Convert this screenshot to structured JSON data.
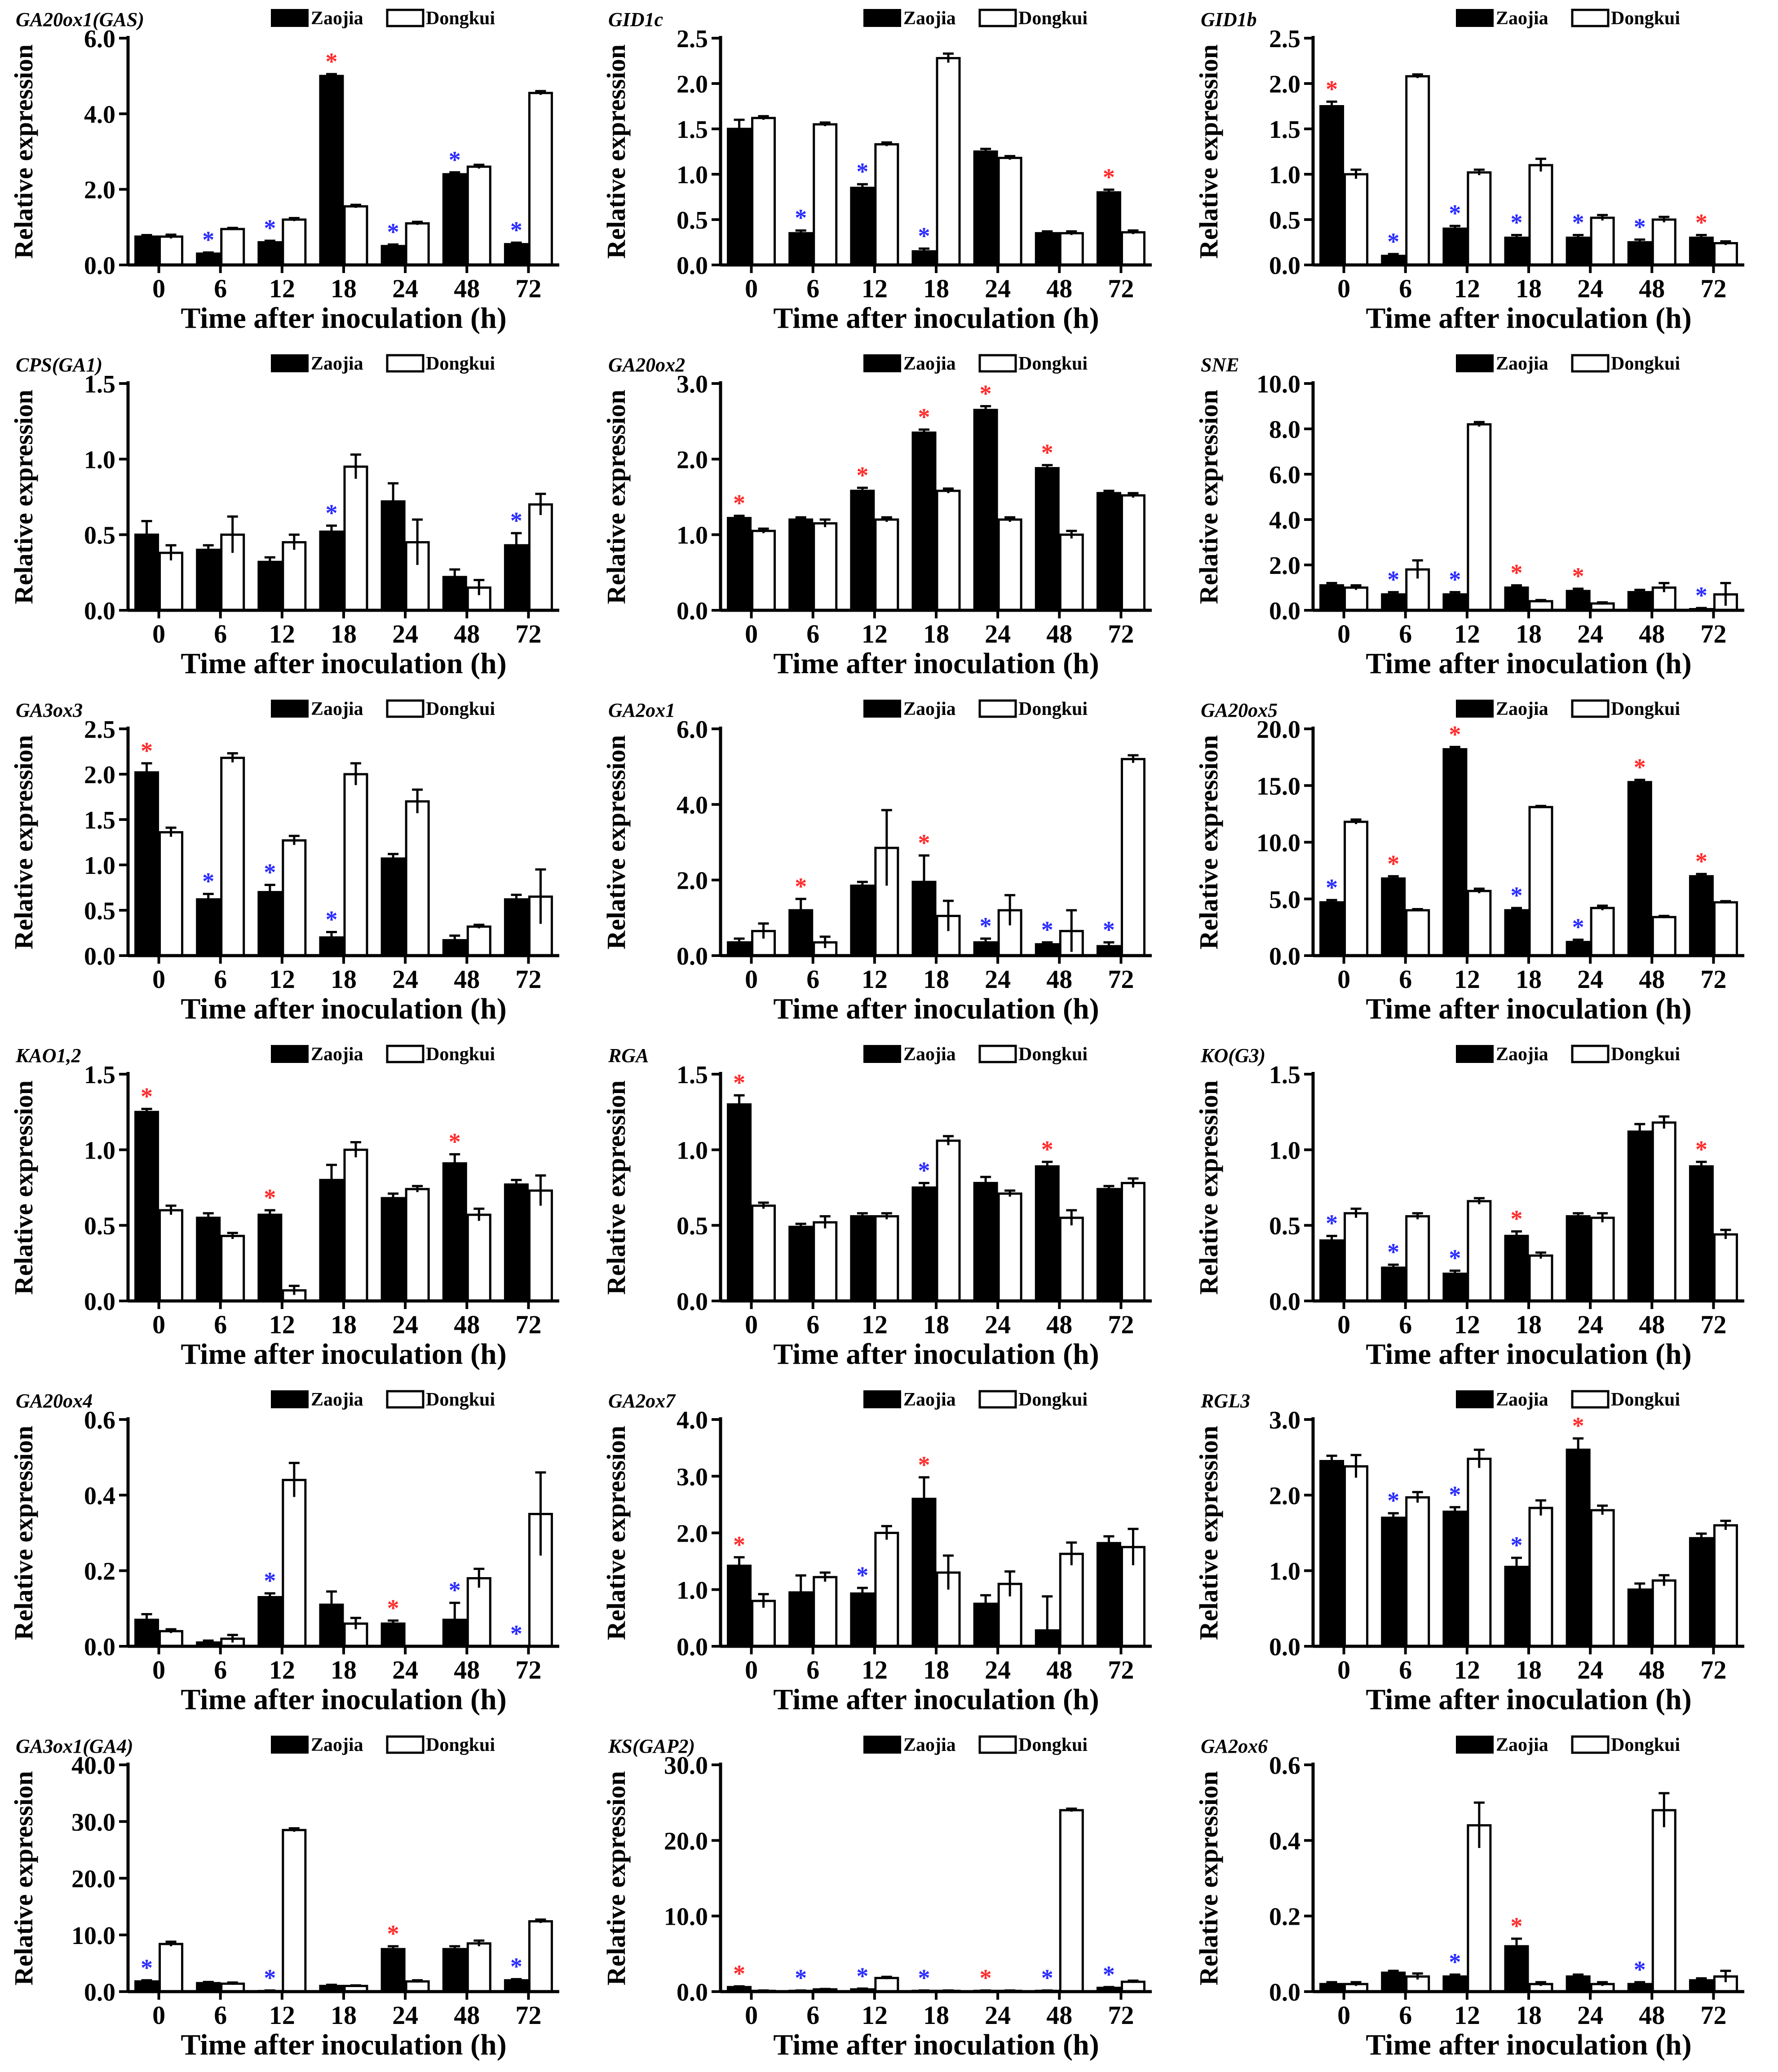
{
  "figure": {
    "categories": [
      "0",
      "6",
      "12",
      "18",
      "24",
      "48",
      "72"
    ],
    "xlabel": "Time after inoculation (h)",
    "ylabel": "Relative expression",
    "legend": [
      "Zaojia",
      "Dongkui"
    ],
    "colors": {
      "zaojia": "#000000",
      "dongkui": "#ffffff",
      "star_up": "#ff2a2a",
      "star_down": "#2a2aff"
    }
  },
  "chart_data": [
    {
      "type": "bar",
      "title": "GA20ox1(GAS)",
      "ylim": [
        0,
        6
      ],
      "yticks": [
        "0.0",
        "2.0",
        "4.0",
        "6.0"
      ],
      "series": [
        {
          "name": "Zaojia",
          "values": [
            0.75,
            0.3,
            0.6,
            5.0,
            0.5,
            2.4,
            0.55
          ],
          "errors": [
            0.04,
            0.03,
            0.04,
            0.05,
            0.04,
            0.05,
            0.04
          ]
        },
        {
          "name": "Dongkui",
          "values": [
            0.75,
            0.95,
            1.2,
            1.55,
            1.1,
            2.6,
            4.55
          ],
          "errors": [
            0.05,
            0.03,
            0.04,
            0.04,
            0.04,
            0.05,
            0.05
          ]
        }
      ],
      "stars": [
        "",
        "b",
        "b",
        "r",
        "b",
        "b",
        "b"
      ]
    },
    {
      "type": "bar",
      "title": "GID1c",
      "ylim": [
        0,
        2.5
      ],
      "yticks": [
        "0.0",
        "0.5",
        "1.0",
        "1.5",
        "2.0",
        "2.5"
      ],
      "series": [
        {
          "name": "Zaojia",
          "values": [
            1.5,
            0.35,
            0.85,
            0.15,
            1.25,
            0.35,
            0.8
          ],
          "errors": [
            0.1,
            0.03,
            0.04,
            0.03,
            0.03,
            0.02,
            0.03
          ]
        },
        {
          "name": "Dongkui",
          "values": [
            1.62,
            1.55,
            1.33,
            2.28,
            1.18,
            0.35,
            0.36
          ],
          "errors": [
            0.02,
            0.02,
            0.02,
            0.05,
            0.02,
            0.02,
            0.02
          ]
        }
      ],
      "stars": [
        "",
        "b",
        "b",
        "b",
        "",
        "",
        "r"
      ]
    },
    {
      "type": "bar",
      "title": "GID1b",
      "ylim": [
        0,
        2.5
      ],
      "yticks": [
        "0.0",
        "0.5",
        "1.0",
        "1.5",
        "2.0",
        "2.5"
      ],
      "series": [
        {
          "name": "Zaojia",
          "values": [
            1.75,
            0.1,
            0.4,
            0.3,
            0.3,
            0.25,
            0.3
          ],
          "errors": [
            0.05,
            0.02,
            0.03,
            0.03,
            0.03,
            0.03,
            0.03
          ]
        },
        {
          "name": "Dongkui",
          "values": [
            1.0,
            2.08,
            1.02,
            1.1,
            0.52,
            0.5,
            0.24
          ],
          "errors": [
            0.05,
            0.02,
            0.03,
            0.07,
            0.03,
            0.03,
            0.02
          ]
        }
      ],
      "stars": [
        "r",
        "b",
        "b",
        "b",
        "b",
        "b",
        "r"
      ]
    },
    {
      "type": "bar",
      "title": "CPS(GA1)",
      "ylim": [
        0,
        1.5
      ],
      "yticks": [
        "0.0",
        "0.5",
        "1.0",
        "1.5"
      ],
      "series": [
        {
          "name": "Zaojia",
          "values": [
            0.5,
            0.4,
            0.32,
            0.52,
            0.72,
            0.22,
            0.43
          ],
          "errors": [
            0.09,
            0.03,
            0.03,
            0.04,
            0.12,
            0.05,
            0.08
          ]
        },
        {
          "name": "Dongkui",
          "values": [
            0.38,
            0.5,
            0.45,
            0.95,
            0.45,
            0.15,
            0.7
          ],
          "errors": [
            0.05,
            0.12,
            0.05,
            0.08,
            0.15,
            0.05,
            0.07
          ]
        }
      ],
      "stars": [
        "",
        "",
        "",
        "b",
        "",
        "",
        "b"
      ]
    },
    {
      "type": "bar",
      "title": "GA20ox2",
      "ylim": [
        0,
        3
      ],
      "yticks": [
        "0.0",
        "1.0",
        "2.0",
        "3.0"
      ],
      "series": [
        {
          "name": "Zaojia",
          "values": [
            1.22,
            1.2,
            1.58,
            2.35,
            2.65,
            1.88,
            1.55
          ],
          "errors": [
            0.03,
            0.03,
            0.04,
            0.04,
            0.05,
            0.04,
            0.03
          ]
        },
        {
          "name": "Dongkui",
          "values": [
            1.05,
            1.15,
            1.2,
            1.58,
            1.2,
            1.0,
            1.52
          ],
          "errors": [
            0.03,
            0.05,
            0.03,
            0.03,
            0.03,
            0.05,
            0.03
          ]
        }
      ],
      "stars": [
        "r",
        "",
        "r",
        "r",
        "r",
        "r",
        ""
      ]
    },
    {
      "type": "bar",
      "title": "SNE",
      "ylim": [
        0,
        10
      ],
      "yticks": [
        "0.0",
        "2.0",
        "4.0",
        "6.0",
        "8.0",
        "10.0"
      ],
      "series": [
        {
          "name": "Zaojia",
          "values": [
            1.1,
            0.7,
            0.7,
            1.0,
            0.85,
            0.8,
            0.05
          ],
          "errors": [
            0.1,
            0.1,
            0.1,
            0.1,
            0.1,
            0.1,
            0.05
          ]
        },
        {
          "name": "Dongkui",
          "values": [
            1.0,
            1.8,
            8.2,
            0.4,
            0.3,
            1.0,
            0.7
          ],
          "errors": [
            0.1,
            0.4,
            0.1,
            0.05,
            0.05,
            0.2,
            0.5
          ]
        }
      ],
      "stars": [
        "",
        "b",
        "b",
        "r",
        "r",
        "",
        "b"
      ]
    },
    {
      "type": "bar",
      "title": "GA3ox3",
      "ylim": [
        0,
        2.5
      ],
      "yticks": [
        "0.0",
        "0.5",
        "1.0",
        "1.5",
        "2.0",
        "2.5"
      ],
      "series": [
        {
          "name": "Zaojia",
          "values": [
            2.02,
            0.62,
            0.7,
            0.2,
            1.07,
            0.17,
            0.62
          ],
          "errors": [
            0.1,
            0.06,
            0.08,
            0.06,
            0.05,
            0.05,
            0.05
          ]
        },
        {
          "name": "Dongkui",
          "values": [
            1.36,
            2.18,
            1.27,
            2.0,
            1.7,
            0.32,
            0.65
          ],
          "errors": [
            0.05,
            0.05,
            0.05,
            0.12,
            0.13,
            0.02,
            0.3
          ]
        }
      ],
      "stars": [
        "r",
        "b",
        "b",
        "b",
        "",
        "",
        ""
      ]
    },
    {
      "type": "bar",
      "title": "GA2ox1",
      "ylim": [
        0,
        6
      ],
      "yticks": [
        "0.0",
        "2.0",
        "4.0",
        "6.0"
      ],
      "series": [
        {
          "name": "Zaojia",
          "values": [
            0.35,
            1.2,
            1.85,
            1.95,
            0.35,
            0.3,
            0.25
          ],
          "errors": [
            0.1,
            0.3,
            0.1,
            0.7,
            0.1,
            0.05,
            0.1
          ]
        },
        {
          "name": "Dongkui",
          "values": [
            0.65,
            0.35,
            2.85,
            1.05,
            1.2,
            0.65,
            5.2
          ],
          "errors": [
            0.2,
            0.15,
            1.0,
            0.4,
            0.4,
            0.55,
            0.1
          ]
        }
      ],
      "stars": [
        "",
        "r",
        "",
        "r",
        "b",
        "b",
        "b"
      ]
    },
    {
      "type": "bar",
      "title": "GA20ox5",
      "ylim": [
        0,
        20
      ],
      "yticks": [
        "0.0",
        "5.0",
        "10.0",
        "15.0",
        "20.0"
      ],
      "series": [
        {
          "name": "Zaojia",
          "values": [
            4.7,
            6.8,
            18.2,
            4.0,
            1.2,
            15.3,
            7.0
          ],
          "errors": [
            0.2,
            0.2,
            0.2,
            0.2,
            0.2,
            0.2,
            0.2
          ]
        },
        {
          "name": "Dongkui",
          "values": [
            11.8,
            4.0,
            5.7,
            13.1,
            4.2,
            3.4,
            4.7
          ],
          "errors": [
            0.2,
            0.1,
            0.2,
            0.1,
            0.2,
            0.1,
            0.1
          ]
        }
      ],
      "stars": [
        "b",
        "r",
        "r",
        "b",
        "b",
        "r",
        "r"
      ]
    },
    {
      "type": "bar",
      "title": "KAO1,2",
      "ylim": [
        0,
        1.5
      ],
      "yticks": [
        "0.0",
        "0.5",
        "1.0",
        "1.5"
      ],
      "series": [
        {
          "name": "Zaojia",
          "values": [
            1.25,
            0.55,
            0.57,
            0.8,
            0.68,
            0.91,
            0.77
          ],
          "errors": [
            0.02,
            0.03,
            0.03,
            0.1,
            0.03,
            0.06,
            0.03
          ]
        },
        {
          "name": "Dongkui",
          "values": [
            0.6,
            0.43,
            0.07,
            1.0,
            0.74,
            0.57,
            0.73
          ],
          "errors": [
            0.03,
            0.02,
            0.03,
            0.05,
            0.02,
            0.04,
            0.1
          ]
        }
      ],
      "stars": [
        "r",
        "",
        "r",
        "",
        "",
        "r",
        ""
      ]
    },
    {
      "type": "bar",
      "title": "RGA",
      "ylim": [
        0,
        1.5
      ],
      "yticks": [
        "0.0",
        "0.5",
        "1.0",
        "1.5"
      ],
      "series": [
        {
          "name": "Zaojia",
          "values": [
            1.3,
            0.49,
            0.56,
            0.75,
            0.78,
            0.89,
            0.74
          ],
          "errors": [
            0.06,
            0.02,
            0.02,
            0.03,
            0.04,
            0.03,
            0.02
          ]
        },
        {
          "name": "Dongkui",
          "values": [
            0.63,
            0.52,
            0.56,
            1.06,
            0.71,
            0.55,
            0.78
          ],
          "errors": [
            0.02,
            0.04,
            0.02,
            0.03,
            0.02,
            0.05,
            0.03
          ]
        }
      ],
      "stars": [
        "r",
        "",
        "",
        "b",
        "",
        "r",
        ""
      ]
    },
    {
      "type": "bar",
      "title": "KO(G3)",
      "ylim": [
        0,
        1.5
      ],
      "yticks": [
        "0.0",
        "0.5",
        "1.0",
        "1.5"
      ],
      "series": [
        {
          "name": "Zaojia",
          "values": [
            0.4,
            0.22,
            0.18,
            0.43,
            0.56,
            1.12,
            0.89
          ],
          "errors": [
            0.03,
            0.02,
            0.02,
            0.03,
            0.02,
            0.05,
            0.03
          ]
        },
        {
          "name": "Dongkui",
          "values": [
            0.58,
            0.56,
            0.66,
            0.3,
            0.55,
            1.18,
            0.44
          ],
          "errors": [
            0.03,
            0.02,
            0.02,
            0.02,
            0.03,
            0.04,
            0.03
          ]
        }
      ],
      "stars": [
        "b",
        "b",
        "b",
        "r",
        "",
        "",
        "r"
      ]
    },
    {
      "type": "bar",
      "title": "GA20ox4",
      "ylim": [
        0,
        0.6
      ],
      "yticks": [
        "0.0",
        "0.2",
        "0.4",
        "0.6"
      ],
      "series": [
        {
          "name": "Zaojia",
          "values": [
            0.07,
            0.01,
            0.13,
            0.11,
            0.06,
            0.07,
            0.0
          ],
          "errors": [
            0.015,
            0.005,
            0.01,
            0.035,
            0.008,
            0.045,
            0.0
          ]
        },
        {
          "name": "Dongkui",
          "values": [
            0.04,
            0.02,
            0.44,
            0.06,
            0.0,
            0.18,
            0.35
          ],
          "errors": [
            0.005,
            0.01,
            0.045,
            0.015,
            0.0,
            0.025,
            0.11
          ]
        }
      ],
      "stars": [
        "",
        "",
        "b",
        "",
        "r",
        "b",
        "b"
      ]
    },
    {
      "type": "bar",
      "title": "GA2ox7",
      "ylim": [
        0,
        4
      ],
      "yticks": [
        "0.0",
        "1.0",
        "2.0",
        "3.0",
        "4.0"
      ],
      "series": [
        {
          "name": "Zaojia",
          "values": [
            1.42,
            0.95,
            0.93,
            2.6,
            0.75,
            0.28,
            1.82
          ],
          "errors": [
            0.15,
            0.3,
            0.1,
            0.38,
            0.15,
            0.6,
            0.12
          ]
        },
        {
          "name": "Dongkui",
          "values": [
            0.8,
            1.22,
            2.0,
            1.3,
            1.1,
            1.63,
            1.75
          ],
          "errors": [
            0.12,
            0.08,
            0.12,
            0.3,
            0.22,
            0.2,
            0.32
          ]
        }
      ],
      "stars": [
        "r",
        "",
        "b",
        "r",
        "",
        "",
        ""
      ]
    },
    {
      "type": "bar",
      "title": "RGL3",
      "ylim": [
        0,
        3
      ],
      "yticks": [
        "0.0",
        "1.0",
        "2.0",
        "3.0"
      ],
      "series": [
        {
          "name": "Zaojia",
          "values": [
            2.45,
            1.7,
            1.78,
            1.05,
            2.6,
            0.75,
            1.43
          ],
          "errors": [
            0.07,
            0.06,
            0.06,
            0.12,
            0.15,
            0.08,
            0.06
          ]
        },
        {
          "name": "Dongkui",
          "values": [
            2.38,
            1.97,
            2.48,
            1.83,
            1.8,
            0.87,
            1.6
          ],
          "errors": [
            0.15,
            0.07,
            0.12,
            0.1,
            0.06,
            0.07,
            0.06
          ]
        }
      ],
      "stars": [
        "",
        "b",
        "b",
        "b",
        "r",
        "",
        ""
      ]
    },
    {
      "type": "bar",
      "title": "GA3ox1(GA4)",
      "ylim": [
        0,
        40
      ],
      "yticks": [
        "0.0",
        "10.0",
        "20.0",
        "30.0",
        "40.0"
      ],
      "series": [
        {
          "name": "Zaojia",
          "values": [
            1.8,
            1.5,
            0.1,
            1.0,
            7.5,
            7.5,
            2.0
          ],
          "errors": [
            0.2,
            0.2,
            0.1,
            0.2,
            0.5,
            0.5,
            0.2
          ]
        },
        {
          "name": "Dongkui",
          "values": [
            8.4,
            1.4,
            28.5,
            1.0,
            1.8,
            8.5,
            12.4
          ],
          "errors": [
            0.4,
            0.2,
            0.3,
            0.1,
            0.2,
            0.5,
            0.3
          ]
        }
      ],
      "stars": [
        "b",
        "",
        "b",
        "",
        "r",
        "",
        "b"
      ]
    },
    {
      "type": "bar",
      "title": "KS(GAP2)",
      "ylim": [
        0,
        30
      ],
      "yticks": [
        "0.0",
        "10.0",
        "20.0",
        "30.0"
      ],
      "series": [
        {
          "name": "Zaojia",
          "values": [
            0.6,
            0.1,
            0.3,
            0.1,
            0.1,
            0.1,
            0.5
          ],
          "errors": [
            0.1,
            0.05,
            0.1,
            0.05,
            0.05,
            0.05,
            0.1
          ]
        },
        {
          "name": "Dongkui",
          "values": [
            0.1,
            0.3,
            1.8,
            0.1,
            0.1,
            24.0,
            1.3
          ],
          "errors": [
            0.05,
            0.05,
            0.15,
            0.05,
            0.05,
            0.2,
            0.15
          ]
        }
      ],
      "stars": [
        "r",
        "b",
        "b",
        "b",
        "r",
        "b",
        "b"
      ]
    },
    {
      "type": "bar",
      "title": "GA2ox6",
      "ylim": [
        0,
        0.6
      ],
      "yticks": [
        "0.0",
        "0.2",
        "0.4",
        "0.6"
      ],
      "series": [
        {
          "name": "Zaojia",
          "values": [
            0.02,
            0.05,
            0.04,
            0.12,
            0.04,
            0.02,
            0.03
          ],
          "errors": [
            0.005,
            0.005,
            0.005,
            0.02,
            0.005,
            0.005,
            0.005
          ]
        },
        {
          "name": "Dongkui",
          "values": [
            0.02,
            0.04,
            0.44,
            0.02,
            0.02,
            0.48,
            0.04
          ],
          "errors": [
            0.005,
            0.008,
            0.06,
            0.005,
            0.005,
            0.045,
            0.015
          ]
        }
      ],
      "stars": [
        "",
        "",
        "b",
        "r",
        "",
        "b",
        ""
      ]
    }
  ]
}
